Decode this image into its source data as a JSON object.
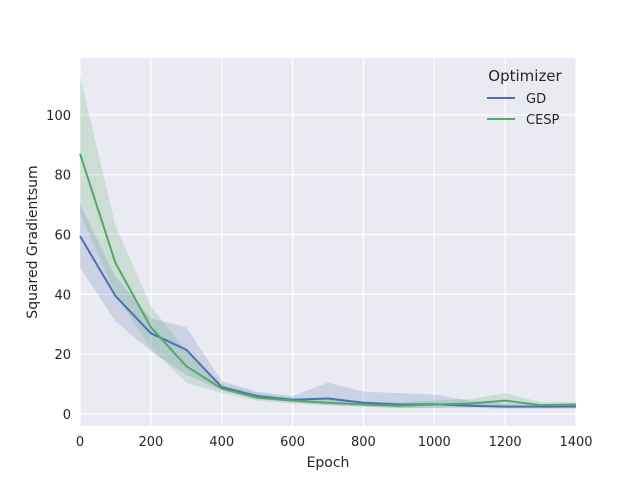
{
  "chart_data": {
    "type": "line",
    "xlabel": "Epoch",
    "ylabel": "Squared Gradientsum",
    "xlim": [
      0,
      1400
    ],
    "ylim": [
      -4,
      119
    ],
    "xticks": [
      0,
      200,
      400,
      600,
      800,
      1000,
      1200,
      1400
    ],
    "yticks": [
      0,
      20,
      40,
      60,
      80,
      100
    ],
    "grid": true,
    "legend": {
      "title": "Optimizer",
      "position": "top-right"
    },
    "x": [
      0,
      100,
      200,
      300,
      400,
      500,
      600,
      700,
      800,
      900,
      1000,
      1100,
      1200,
      1300,
      1400
    ],
    "series": [
      {
        "name": "GD",
        "color": "#4c72b0",
        "values": [
          59.5,
          39.5,
          27,
          21.5,
          9,
          6,
          4.8,
          5.2,
          3.8,
          3.2,
          3.3,
          2.8,
          2.5,
          2.5,
          2.5
        ],
        "ci_low": [
          49,
          31,
          21,
          13,
          8,
          5,
          4,
          3,
          2.5,
          2,
          2,
          2,
          1.8,
          1.8,
          1.8
        ],
        "ci_high": [
          70,
          46,
          32,
          29,
          11,
          7.5,
          6,
          10.5,
          7.5,
          7,
          6.5,
          4.5,
          3.5,
          3,
          3
        ]
      },
      {
        "name": "CESP",
        "color": "#55a868",
        "values": [
          87,
          50.5,
          29,
          16,
          8.5,
          5.5,
          4.5,
          3.8,
          3.2,
          2.8,
          3.2,
          3.5,
          4.5,
          3,
          3.2
        ],
        "ci_low": [
          67,
          40,
          22,
          10.5,
          7,
          4.5,
          3.5,
          3,
          2.5,
          2,
          2.2,
          2.5,
          2.8,
          2.2,
          2.5
        ],
        "ci_high": [
          113,
          63,
          36,
          21,
          10,
          7,
          5.5,
          4.8,
          4,
          4,
          4.5,
          5,
          7,
          4,
          4
        ]
      }
    ]
  }
}
